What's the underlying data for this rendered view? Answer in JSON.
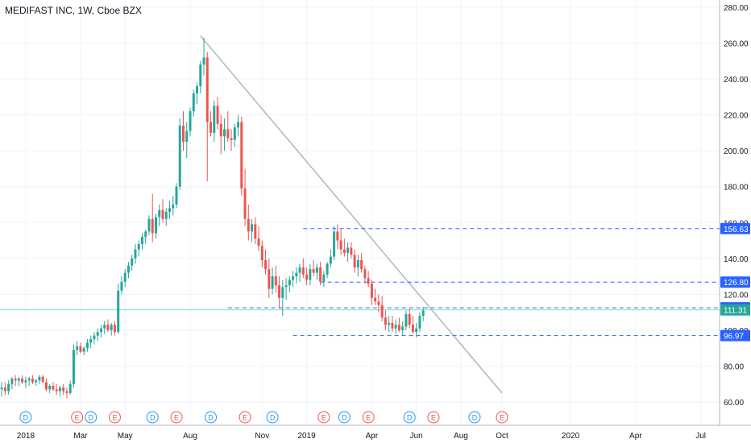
{
  "header": {
    "title": "MEDIFAST INC, 1W, Cboe BZX"
  },
  "colors": {
    "up": "#26a69a",
    "down": "#ef5350",
    "level": "#2962ff",
    "trend": "#b2b5be",
    "last": "#26a69a",
    "price_line": "#4dd0c4",
    "grid": "#f0f3fa",
    "axis_text": "#131722",
    "dividend": "#2196f3",
    "earnings": "#ef5350"
  },
  "chart_data": {
    "type": "candlestick",
    "ylim": [
      47,
      284
    ],
    "yticks": [
      "280.00",
      "260.00",
      "240.00",
      "220.00",
      "200.00",
      "180.00",
      "160.00",
      "140.00",
      "120.00",
      "100.00",
      "80.00",
      "60.00"
    ],
    "ytick_values": [
      280,
      260,
      240,
      220,
      200,
      180,
      160,
      140,
      120,
      100,
      80,
      60
    ],
    "xtick_labels": [
      "2018",
      "Mar",
      "May",
      "Aug",
      "Nov",
      "2019",
      "Apr",
      "Jun",
      "Aug",
      "Oct",
      "2020",
      "Apr",
      "Jul"
    ],
    "xtick_index": [
      7,
      23,
      36,
      55,
      76,
      89,
      108,
      121,
      134,
      146,
      166,
      185,
      204
    ],
    "weeks_visible": 210,
    "candles": [
      {
        "o": 67,
        "h": 71,
        "l": 63,
        "c": 68
      },
      {
        "o": 68,
        "h": 71,
        "l": 64,
        "c": 66
      },
      {
        "o": 66,
        "h": 72,
        "l": 64,
        "c": 70
      },
      {
        "o": 70,
        "h": 74,
        "l": 67,
        "c": 73
      },
      {
        "o": 73,
        "h": 75,
        "l": 69,
        "c": 72
      },
      {
        "o": 72,
        "h": 74,
        "l": 69,
        "c": 73
      },
      {
        "o": 73,
        "h": 75,
        "l": 70,
        "c": 71
      },
      {
        "o": 71,
        "h": 74,
        "l": 68,
        "c": 72
      },
      {
        "o": 72,
        "h": 74,
        "l": 69,
        "c": 73
      },
      {
        "o": 73,
        "h": 75,
        "l": 70,
        "c": 71
      },
      {
        "o": 71,
        "h": 73,
        "l": 69,
        "c": 72
      },
      {
        "o": 72,
        "h": 75,
        "l": 70,
        "c": 74
      },
      {
        "o": 74,
        "h": 75,
        "l": 71,
        "c": 71
      },
      {
        "o": 71,
        "h": 73,
        "l": 66,
        "c": 67
      },
      {
        "o": 67,
        "h": 70,
        "l": 65,
        "c": 69
      },
      {
        "o": 69,
        "h": 71,
        "l": 66,
        "c": 67
      },
      {
        "o": 67,
        "h": 70,
        "l": 64,
        "c": 66
      },
      {
        "o": 66,
        "h": 69,
        "l": 63,
        "c": 68
      },
      {
        "o": 68,
        "h": 70,
        "l": 64,
        "c": 66
      },
      {
        "o": 66,
        "h": 68,
        "l": 62,
        "c": 65
      },
      {
        "o": 65,
        "h": 72,
        "l": 64,
        "c": 70
      },
      {
        "o": 70,
        "h": 92,
        "l": 68,
        "c": 89
      },
      {
        "o": 89,
        "h": 94,
        "l": 86,
        "c": 91
      },
      {
        "o": 91,
        "h": 93,
        "l": 87,
        "c": 88
      },
      {
        "o": 88,
        "h": 91,
        "l": 86,
        "c": 90
      },
      {
        "o": 90,
        "h": 95,
        "l": 88,
        "c": 93
      },
      {
        "o": 93,
        "h": 97,
        "l": 90,
        "c": 95
      },
      {
        "o": 95,
        "h": 99,
        "l": 92,
        "c": 97
      },
      {
        "o": 97,
        "h": 101,
        "l": 94,
        "c": 99
      },
      {
        "o": 99,
        "h": 103,
        "l": 96,
        "c": 101
      },
      {
        "o": 101,
        "h": 105,
        "l": 98,
        "c": 103
      },
      {
        "o": 103,
        "h": 106,
        "l": 99,
        "c": 100
      },
      {
        "o": 100,
        "h": 104,
        "l": 97,
        "c": 103
      },
      {
        "o": 103,
        "h": 105,
        "l": 97,
        "c": 99
      },
      {
        "o": 99,
        "h": 126,
        "l": 98,
        "c": 122
      },
      {
        "o": 122,
        "h": 130,
        "l": 120,
        "c": 127
      },
      {
        "o": 127,
        "h": 134,
        "l": 124,
        "c": 132
      },
      {
        "o": 132,
        "h": 138,
        "l": 129,
        "c": 136
      },
      {
        "o": 136,
        "h": 142,
        "l": 133,
        "c": 140
      },
      {
        "o": 140,
        "h": 148,
        "l": 137,
        "c": 145
      },
      {
        "o": 145,
        "h": 150,
        "l": 141,
        "c": 148
      },
      {
        "o": 148,
        "h": 154,
        "l": 145,
        "c": 152
      },
      {
        "o": 152,
        "h": 156,
        "l": 148,
        "c": 155
      },
      {
        "o": 155,
        "h": 164,
        "l": 153,
        "c": 162
      },
      {
        "o": 162,
        "h": 176,
        "l": 149,
        "c": 154
      },
      {
        "o": 154,
        "h": 165,
        "l": 151,
        "c": 163
      },
      {
        "o": 163,
        "h": 170,
        "l": 158,
        "c": 167
      },
      {
        "o": 167,
        "h": 173,
        "l": 160,
        "c": 162
      },
      {
        "o": 162,
        "h": 168,
        "l": 158,
        "c": 166
      },
      {
        "o": 166,
        "h": 172,
        "l": 162,
        "c": 168
      },
      {
        "o": 168,
        "h": 175,
        "l": 164,
        "c": 170
      },
      {
        "o": 170,
        "h": 182,
        "l": 168,
        "c": 180
      },
      {
        "o": 180,
        "h": 218,
        "l": 178,
        "c": 214
      },
      {
        "o": 214,
        "h": 222,
        "l": 200,
        "c": 205
      },
      {
        "o": 205,
        "h": 216,
        "l": 196,
        "c": 211
      },
      {
        "o": 211,
        "h": 224,
        "l": 208,
        "c": 222
      },
      {
        "o": 222,
        "h": 234,
        "l": 219,
        "c": 232
      },
      {
        "o": 232,
        "h": 238,
        "l": 226,
        "c": 236
      },
      {
        "o": 236,
        "h": 250,
        "l": 232,
        "c": 248
      },
      {
        "o": 248,
        "h": 263,
        "l": 242,
        "c": 252
      },
      {
        "o": 252,
        "h": 255,
        "l": 183,
        "c": 216
      },
      {
        "o": 216,
        "h": 222,
        "l": 208,
        "c": 210
      },
      {
        "o": 210,
        "h": 228,
        "l": 205,
        "c": 225
      },
      {
        "o": 225,
        "h": 230,
        "l": 212,
        "c": 215
      },
      {
        "o": 215,
        "h": 220,
        "l": 198,
        "c": 208
      },
      {
        "o": 208,
        "h": 218,
        "l": 200,
        "c": 212
      },
      {
        "o": 212,
        "h": 222,
        "l": 205,
        "c": 207
      },
      {
        "o": 207,
        "h": 212,
        "l": 200,
        "c": 206
      },
      {
        "o": 206,
        "h": 215,
        "l": 202,
        "c": 213
      },
      {
        "o": 213,
        "h": 220,
        "l": 208,
        "c": 216
      },
      {
        "o": 216,
        "h": 219,
        "l": 175,
        "c": 179
      },
      {
        "o": 179,
        "h": 190,
        "l": 158,
        "c": 162
      },
      {
        "o": 162,
        "h": 170,
        "l": 150,
        "c": 155
      },
      {
        "o": 155,
        "h": 162,
        "l": 149,
        "c": 159
      },
      {
        "o": 159,
        "h": 163,
        "l": 148,
        "c": 151
      },
      {
        "o": 151,
        "h": 158,
        "l": 144,
        "c": 147
      },
      {
        "o": 147,
        "h": 150,
        "l": 135,
        "c": 139
      },
      {
        "o": 139,
        "h": 145,
        "l": 131,
        "c": 134
      },
      {
        "o": 134,
        "h": 140,
        "l": 118,
        "c": 123
      },
      {
        "o": 123,
        "h": 135,
        "l": 120,
        "c": 130
      },
      {
        "o": 130,
        "h": 136,
        "l": 121,
        "c": 125
      },
      {
        "o": 125,
        "h": 130,
        "l": 112,
        "c": 118
      },
      {
        "o": 118,
        "h": 128,
        "l": 108,
        "c": 124
      },
      {
        "o": 124,
        "h": 129,
        "l": 117,
        "c": 125
      },
      {
        "o": 125,
        "h": 130,
        "l": 121,
        "c": 128
      },
      {
        "o": 128,
        "h": 133,
        "l": 124,
        "c": 130
      },
      {
        "o": 130,
        "h": 135,
        "l": 126,
        "c": 132
      },
      {
        "o": 132,
        "h": 137,
        "l": 127,
        "c": 135
      },
      {
        "o": 135,
        "h": 140,
        "l": 129,
        "c": 131
      },
      {
        "o": 131,
        "h": 135,
        "l": 125,
        "c": 128
      },
      {
        "o": 128,
        "h": 137,
        "l": 125,
        "c": 134
      },
      {
        "o": 134,
        "h": 139,
        "l": 130,
        "c": 132
      },
      {
        "o": 132,
        "h": 137,
        "l": 128,
        "c": 135
      },
      {
        "o": 135,
        "h": 138,
        "l": 125,
        "c": 127
      },
      {
        "o": 127,
        "h": 133,
        "l": 124,
        "c": 131
      },
      {
        "o": 131,
        "h": 138,
        "l": 129,
        "c": 137
      },
      {
        "o": 137,
        "h": 145,
        "l": 135,
        "c": 141
      },
      {
        "o": 141,
        "h": 158,
        "l": 139,
        "c": 155
      },
      {
        "o": 155,
        "h": 159,
        "l": 145,
        "c": 150
      },
      {
        "o": 150,
        "h": 156,
        "l": 142,
        "c": 145
      },
      {
        "o": 145,
        "h": 151,
        "l": 141,
        "c": 143
      },
      {
        "o": 143,
        "h": 149,
        "l": 138,
        "c": 146
      },
      {
        "o": 146,
        "h": 149,
        "l": 140,
        "c": 142
      },
      {
        "o": 142,
        "h": 145,
        "l": 132,
        "c": 135
      },
      {
        "o": 135,
        "h": 142,
        "l": 130,
        "c": 139
      },
      {
        "o": 139,
        "h": 143,
        "l": 132,
        "c": 134
      },
      {
        "o": 134,
        "h": 136,
        "l": 126,
        "c": 129
      },
      {
        "o": 129,
        "h": 133,
        "l": 124,
        "c": 126
      },
      {
        "o": 126,
        "h": 128,
        "l": 114,
        "c": 118
      },
      {
        "o": 118,
        "h": 123,
        "l": 114,
        "c": 116
      },
      {
        "o": 116,
        "h": 120,
        "l": 110,
        "c": 114
      },
      {
        "o": 114,
        "h": 119,
        "l": 105,
        "c": 107
      },
      {
        "o": 107,
        "h": 111,
        "l": 100,
        "c": 103
      },
      {
        "o": 103,
        "h": 108,
        "l": 99,
        "c": 104
      },
      {
        "o": 104,
        "h": 108,
        "l": 99,
        "c": 101
      },
      {
        "o": 101,
        "h": 106,
        "l": 98,
        "c": 103
      },
      {
        "o": 103,
        "h": 107,
        "l": 99,
        "c": 100
      },
      {
        "o": 100,
        "h": 105,
        "l": 97,
        "c": 102
      },
      {
        "o": 102,
        "h": 111,
        "l": 100,
        "c": 109
      },
      {
        "o": 109,
        "h": 112,
        "l": 101,
        "c": 103
      },
      {
        "o": 103,
        "h": 108,
        "l": 98,
        "c": 99
      },
      {
        "o": 99,
        "h": 104,
        "l": 96,
        "c": 101
      },
      {
        "o": 101,
        "h": 110,
        "l": 99,
        "c": 108
      },
      {
        "o": 108,
        "h": 113,
        "l": 105,
        "c": 111
      }
    ],
    "hlines": [
      {
        "value": 156.63,
        "from_index": 88,
        "label": "156.63"
      },
      {
        "value": 126.8,
        "from_index": 93,
        "label": "126.80"
      },
      {
        "value": 112.46,
        "from_index": 66,
        "label": "112.46"
      },
      {
        "value": 96.97,
        "from_index": 85,
        "label": "96.97"
      }
    ],
    "last_price": {
      "value": 111.31,
      "label": "111.31"
    },
    "trendline": {
      "x1_index": 58,
      "y1": 264,
      "x2_index": 146,
      "y2": 65
    },
    "event_markers": [
      {
        "label": "D",
        "type": "dividend",
        "index": 7
      },
      {
        "label": "E",
        "type": "earnings",
        "index": 22
      },
      {
        "label": "D",
        "type": "dividend",
        "index": 26
      },
      {
        "label": "E",
        "type": "earnings",
        "index": 33
      },
      {
        "label": "D",
        "type": "dividend",
        "index": 44
      },
      {
        "label": "E",
        "type": "earnings",
        "index": 51
      },
      {
        "label": "D",
        "type": "dividend",
        "index": 61
      },
      {
        "label": "E",
        "type": "earnings",
        "index": 71
      },
      {
        "label": "D",
        "type": "dividend",
        "index": 79
      },
      {
        "label": "E",
        "type": "earnings",
        "index": 94
      },
      {
        "label": "D",
        "type": "dividend",
        "index": 100
      },
      {
        "label": "E",
        "type": "earnings",
        "index": 107
      },
      {
        "label": "D",
        "type": "dividend",
        "index": 119
      },
      {
        "label": "E",
        "type": "earnings",
        "index": 126
      },
      {
        "label": "D",
        "type": "dividend",
        "index": 138
      },
      {
        "label": "E",
        "type": "earnings",
        "index": 146
      }
    ]
  }
}
